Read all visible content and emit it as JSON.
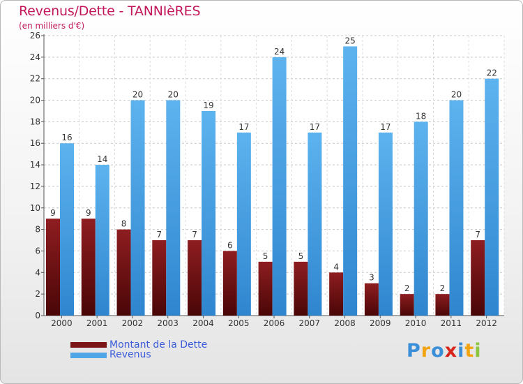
{
  "chart_data": {
    "type": "bar",
    "title": "Revenus/Dette - TANNIèRES",
    "subtitle": "(en milliers d'€)",
    "categories": [
      "2000",
      "2001",
      "2002",
      "2003",
      "2004",
      "2005",
      "2006",
      "2007",
      "2008",
      "2009",
      "2010",
      "2011",
      "2012"
    ],
    "series": [
      {
        "name": "Montant de la Dette",
        "color": "#7b1416",
        "values": [
          9,
          9,
          8,
          7,
          7,
          6,
          5,
          5,
          4,
          3,
          2,
          2,
          7
        ]
      },
      {
        "name": "Revenus",
        "color": "#4ea6e6",
        "values": [
          16,
          14,
          20,
          20,
          19,
          17,
          24,
          17,
          25,
          17,
          18,
          20,
          22
        ]
      }
    ],
    "ylim": [
      0,
      26
    ],
    "yticks": [
      0,
      2,
      4,
      6,
      8,
      10,
      12,
      14,
      16,
      18,
      20,
      22,
      24,
      26
    ],
    "grid": true,
    "legend": "bottom-left"
  },
  "logo": {
    "text": "Proxiti",
    "colors": [
      "#3b8ed8",
      "#f2a30f",
      "#3b8ed8",
      "#d9261c",
      "#3b8ed8",
      "#f2a30f",
      "#8cc63f"
    ]
  }
}
